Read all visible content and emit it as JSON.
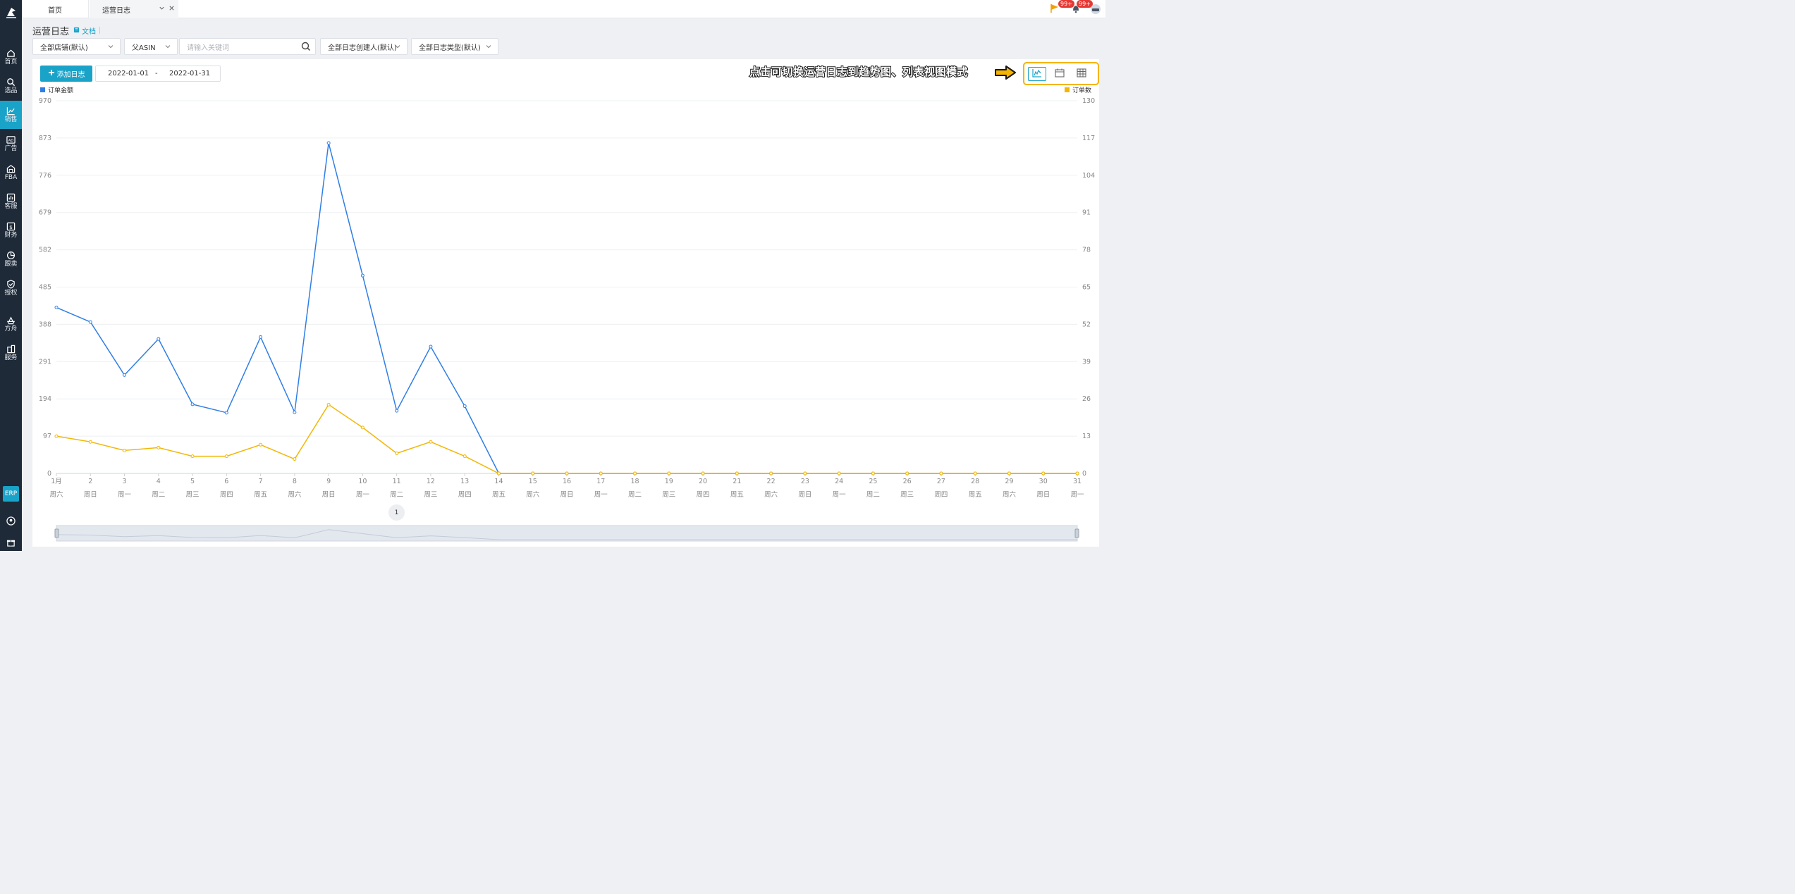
{
  "sidebar": {
    "logo_icon": "ship-wheel-logo-icon",
    "items": [
      {
        "label": "首页",
        "icon": "home-icon"
      },
      {
        "label": "选品",
        "icon": "search-icon"
      },
      {
        "label": "销售",
        "icon": "trend-chart-icon",
        "active": true
      },
      {
        "label": "广告",
        "icon": "ad-icon"
      },
      {
        "label": "FBA",
        "icon": "warehouse-icon"
      },
      {
        "label": "客服",
        "icon": "bar-chart-icon"
      },
      {
        "label": "财务",
        "icon": "dollar-icon"
      },
      {
        "label": "跟卖",
        "icon": "pie-chart-icon"
      },
      {
        "label": "授权",
        "icon": "shield-check-icon"
      },
      {
        "label": "方舟",
        "icon": "ark-icon"
      },
      {
        "label": "服务",
        "icon": "building-icon"
      }
    ],
    "erp_label": "ERP"
  },
  "tabs": {
    "home": "首页",
    "log": "运营日志"
  },
  "topbar": {
    "badge_1": "99+",
    "badge_2": "99+"
  },
  "header": {
    "title": "运营日志",
    "doc_link": "文档"
  },
  "filters": {
    "store": "全部店铺(默认)",
    "asin": "父ASIN",
    "keyword_placeholder": "请输入关键词",
    "creator": "全部日志创建人(默认)",
    "type": "全部日志类型(默认)"
  },
  "toolbar": {
    "add_label": "添加日志",
    "date_start": "2022-01-01",
    "date_sep": "-",
    "date_end": "2022-01-31",
    "callout": "点击可切换运营日志到趋势图、列表视图模式"
  },
  "view_modes": [
    "trend",
    "calendar",
    "table"
  ],
  "colors": {
    "accent": "#1aa3c8",
    "series_amount": "#2f7ee6",
    "series_count": "#f2b705",
    "highlight": "#f5b400",
    "sidebar_bg": "#1e2a38"
  },
  "pagination": {
    "current": "1"
  },
  "chart_data": {
    "type": "line",
    "x": [
      "1月",
      "2",
      "3",
      "4",
      "5",
      "6",
      "7",
      "8",
      "9",
      "10",
      "11",
      "12",
      "13",
      "14",
      "15",
      "16",
      "17",
      "18",
      "19",
      "20",
      "21",
      "22",
      "23",
      "24",
      "25",
      "26",
      "27",
      "28",
      "29",
      "30",
      "31"
    ],
    "weekdays": [
      "周六",
      "周日",
      "周一",
      "周二",
      "周三",
      "周四",
      "周五",
      "周六",
      "周日",
      "周一",
      "周二",
      "周三",
      "周四",
      "周五",
      "周六",
      "周日",
      "周一",
      "周二",
      "周三",
      "周四",
      "周五",
      "周六",
      "周日",
      "周一",
      "周二",
      "周三",
      "周四",
      "周五",
      "周六",
      "周日",
      "周一"
    ],
    "series": [
      {
        "name": "订单金额",
        "axis": "left",
        "color": "#2f7ee6",
        "values": [
          432,
          394,
          256,
          350,
          180,
          158,
          355,
          159,
          860,
          515,
          163,
          330,
          175,
          0,
          0,
          0,
          0,
          0,
          0,
          0,
          0,
          0,
          0,
          0,
          0,
          0,
          0,
          0,
          0,
          0,
          0
        ]
      },
      {
        "name": "订单数",
        "axis": "right",
        "color": "#f2b705",
        "values": [
          13,
          11,
          8,
          9,
          6,
          6,
          10,
          5,
          24,
          16,
          7,
          11,
          6,
          0,
          0,
          0,
          0,
          0,
          0,
          0,
          0,
          0,
          0,
          0,
          0,
          0,
          0,
          0,
          0,
          0,
          0
        ]
      }
    ],
    "y_left_ticks": [
      0,
      97,
      194,
      291,
      388,
      485,
      582,
      679,
      776,
      873,
      970
    ],
    "y_right_ticks": [
      0,
      13,
      26,
      39,
      52,
      65,
      78,
      91,
      104,
      117,
      130
    ],
    "y_left_range": [
      0,
      970
    ],
    "y_right_range": [
      0,
      130
    ],
    "legend_left": "订单金额",
    "legend_right": "订单数",
    "legend_placement": "top-left and top-right",
    "grid": true
  }
}
